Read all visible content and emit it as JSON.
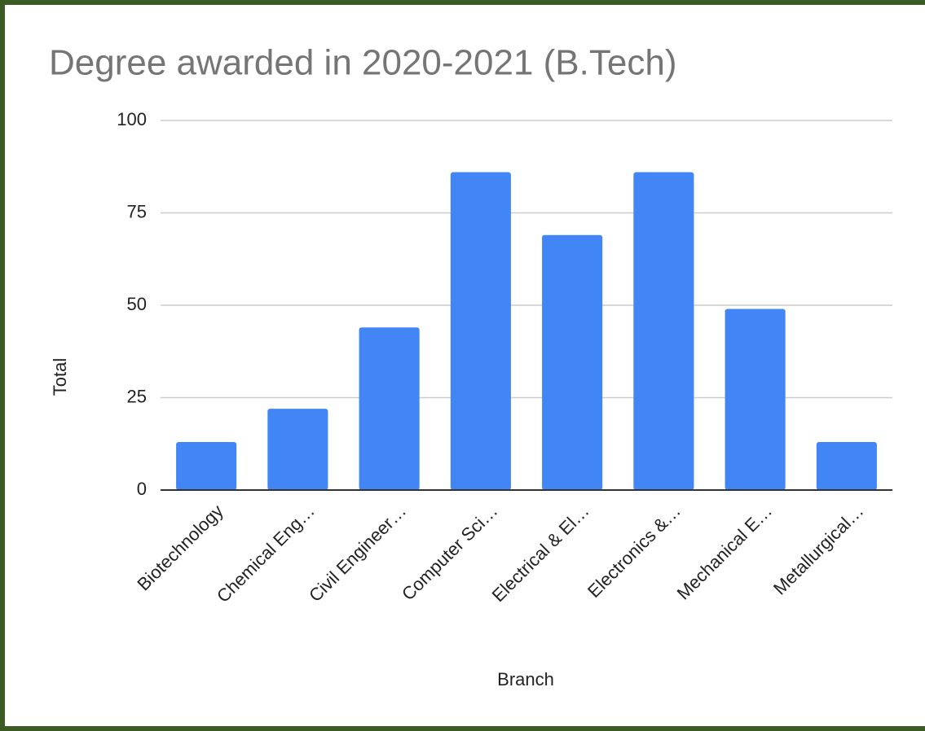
{
  "chart_data": {
    "type": "bar",
    "title": "Degree awarded in 2020-2021 (B.Tech)",
    "x_label": "Branch",
    "y_label": "Total",
    "categories": [
      "Biotechnology",
      "Chemical Eng…",
      "Civil Engineer…",
      "Computer Sci…",
      "Electrical & El…",
      "Electronics &…",
      "Mechanical E…",
      "Metallurgical…"
    ],
    "values": [
      13,
      22,
      44,
      86,
      69,
      86,
      49,
      13
    ],
    "color": "#4285f4",
    "ylim": [
      0,
      100
    ],
    "yticks": [
      0,
      25,
      50,
      75,
      100
    ],
    "grid": true
  }
}
